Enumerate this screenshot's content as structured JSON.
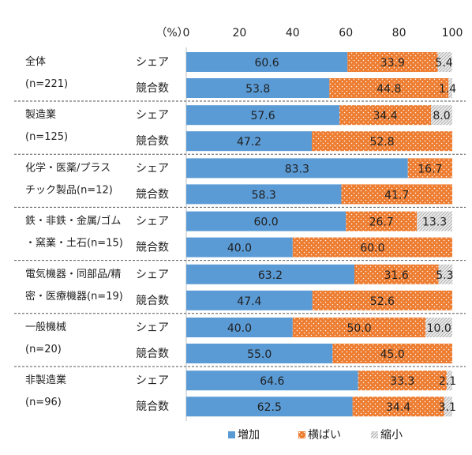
{
  "chart_data": {
    "type": "bar",
    "orientation": "horizontal",
    "stacked": true,
    "axis_unit": "（%）",
    "xlim": [
      0,
      100
    ],
    "x_ticks": [
      "0",
      "20",
      "40",
      "60",
      "80",
      "100"
    ],
    "series": [
      {
        "name": "増加",
        "color": "#5b9bd5"
      },
      {
        "name": "横ばい",
        "color": "#ed7d31"
      },
      {
        "name": "縮小",
        "color": "#c9c9c9"
      }
    ],
    "legend": {
      "position": "bottom"
    },
    "groups": [
      {
        "label_lines": [
          "全体",
          "(n=221)"
        ],
        "rows": [
          {
            "label": "シェア",
            "values": [
              60.6,
              33.9,
              5.4
            ],
            "value_labels": [
              "60.6",
              "33.9",
              "5.4"
            ]
          },
          {
            "label": "競合数",
            "values": [
              53.8,
              44.8,
              1.4
            ],
            "value_labels": [
              "53.8",
              "44.8",
              "1.4"
            ]
          }
        ]
      },
      {
        "label_lines": [
          "製造業",
          "(n=125)"
        ],
        "rows": [
          {
            "label": "シェア",
            "values": [
              57.6,
              34.4,
              8.0
            ],
            "value_labels": [
              "57.6",
              "34.4",
              "8.0"
            ]
          },
          {
            "label": "競合数",
            "values": [
              47.2,
              52.8,
              0
            ],
            "value_labels": [
              "47.2",
              "52.8",
              ""
            ]
          }
        ]
      },
      {
        "label_lines": [
          "化学・医薬/プラス",
          "チック製品(n=12)"
        ],
        "rows": [
          {
            "label": "シェア",
            "values": [
              83.3,
              16.7,
              0
            ],
            "value_labels": [
              "83.3",
              "16.7",
              ""
            ]
          },
          {
            "label": "競合数",
            "values": [
              58.3,
              41.7,
              0
            ],
            "value_labels": [
              "58.3",
              "41.7",
              ""
            ]
          }
        ]
      },
      {
        "label_lines": [
          "鉄・非鉄・金属/ゴム",
          "・窯業・土石(n=15)"
        ],
        "rows": [
          {
            "label": "シェア",
            "values": [
              60.0,
              26.7,
              13.3
            ],
            "value_labels": [
              "60.0",
              "26.7",
              "13.3"
            ]
          },
          {
            "label": "競合数",
            "values": [
              40.0,
              60.0,
              0
            ],
            "value_labels": [
              "40.0",
              "60.0",
              ""
            ]
          }
        ]
      },
      {
        "label_lines": [
          "電気機器・同部品/精",
          "密・医療機器(n=19)"
        ],
        "rows": [
          {
            "label": "シェア",
            "values": [
              63.2,
              31.6,
              5.3
            ],
            "value_labels": [
              "63.2",
              "31.6",
              "5.3"
            ]
          },
          {
            "label": "競合数",
            "values": [
              47.4,
              52.6,
              0
            ],
            "value_labels": [
              "47.4",
              "52.6",
              ""
            ]
          }
        ]
      },
      {
        "label_lines": [
          "一般機械",
          "(n=20)"
        ],
        "rows": [
          {
            "label": "シェア",
            "values": [
              40.0,
              50.0,
              10.0
            ],
            "value_labels": [
              "40.0",
              "50.0",
              "10.0"
            ]
          },
          {
            "label": "競合数",
            "values": [
              55.0,
              45.0,
              0
            ],
            "value_labels": [
              "55.0",
              "45.0",
              ""
            ]
          }
        ]
      },
      {
        "label_lines": [
          "非製造業",
          "(n=96)"
        ],
        "rows": [
          {
            "label": "シェア",
            "values": [
              64.6,
              33.3,
              2.1
            ],
            "value_labels": [
              "64.6",
              "33.3",
              "2.1"
            ]
          },
          {
            "label": "競合数",
            "values": [
              62.5,
              34.4,
              3.1
            ],
            "value_labels": [
              "62.5",
              "34.4",
              "3.1"
            ]
          }
        ]
      }
    ]
  }
}
